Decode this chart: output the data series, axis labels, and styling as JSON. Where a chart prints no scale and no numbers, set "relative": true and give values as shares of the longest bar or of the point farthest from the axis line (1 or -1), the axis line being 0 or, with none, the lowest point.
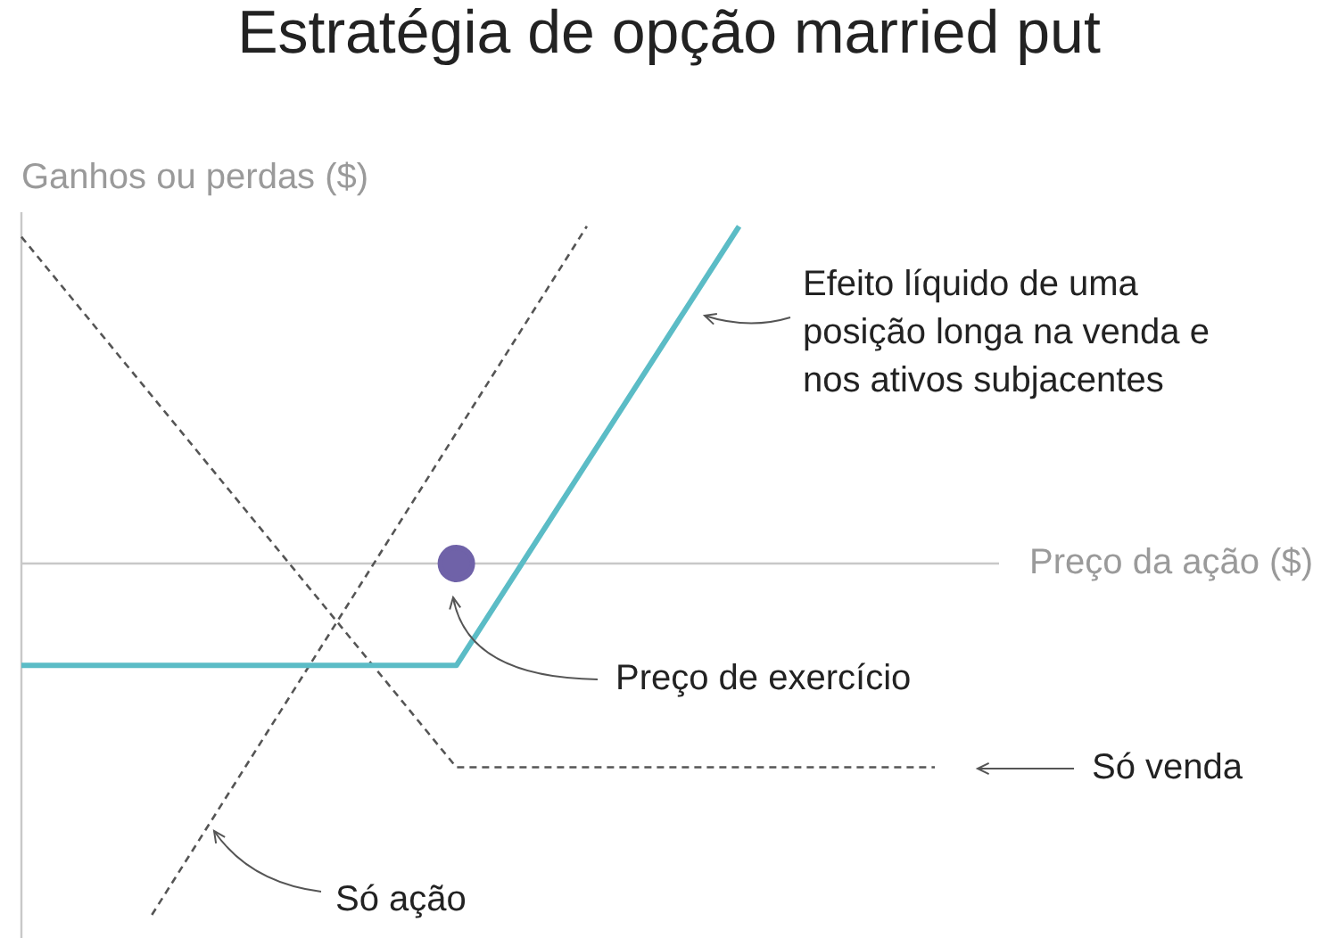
{
  "chart_data": {
    "type": "line",
    "title": "Estratégia de opção married put",
    "xlabel": "Preço da ação ($)",
    "ylabel": "Ganhos ou perdas ($)",
    "relative": true,
    "marker": "none",
    "categories": [
      null,
      null,
      null,
      null,
      null,
      null,
      null,
      null,
      null,
      null,
      null,
      null,
      null,
      null,
      null,
      null,
      null,
      null,
      null,
      null,
      null,
      null,
      null,
      null,
      null,
      null,
      null,
      null,
      null,
      null,
      null,
      null,
      null,
      null,
      null,
      null,
      null,
      null,
      null,
      null,
      null,
      null,
      null
    ],
    "series": [
      {
        "color": "#5bbcc6",
        "line_style": "solid",
        "values": [
          -0.29,
          null,
          null,
          null,
          null,
          null,
          null,
          null,
          null,
          null,
          null,
          null,
          null,
          null,
          null,
          null,
          null,
          null,
          null,
          null,
          -0.29,
          null,
          null,
          null,
          null,
          null,
          null,
          null,
          null,
          null,
          null,
          null,
          null,
          0.96,
          null,
          null,
          null,
          null,
          null,
          null,
          null,
          null,
          null
        ]
      },
      {
        "color": "#555555",
        "line_style": "dashed",
        "values": [
          0.93,
          null,
          null,
          null,
          null,
          null,
          null,
          null,
          null,
          null,
          null,
          null,
          null,
          null,
          null,
          null,
          null,
          null,
          null,
          null,
          -0.58,
          null,
          null,
          null,
          null,
          null,
          null,
          null,
          null,
          null,
          null,
          null,
          null,
          null,
          null,
          null,
          null,
          null,
          null,
          null,
          null,
          null,
          -0.58
        ]
      },
      {
        "color": "#555555",
        "line_style": "dashed",
        "values": [
          null,
          null,
          null,
          null,
          null,
          null,
          -1,
          null,
          null,
          null,
          null,
          null,
          null,
          null,
          null,
          null,
          null,
          null,
          null,
          null,
          null,
          null,
          null,
          null,
          null,
          null,
          0.96,
          null,
          null,
          null,
          null,
          null,
          null,
          null,
          null,
          null,
          null,
          null,
          null,
          null,
          null,
          null,
          null
        ]
      },
      {
        "marker": "circle",
        "color": "#6f62a8",
        "values": [
          null,
          null,
          null,
          null,
          null,
          null,
          null,
          null,
          null,
          null,
          null,
          null,
          null,
          null,
          null,
          null,
          null,
          null,
          null,
          null,
          0,
          null,
          null,
          null,
          null,
          null,
          null,
          null,
          null,
          null,
          null,
          null,
          null,
          null,
          null,
          null,
          null,
          null,
          null,
          null,
          null,
          null,
          null
        ]
      }
    ],
    "annotations": [
      "Efeito líquido de uma posição longa na venda e nos ativos subjacentes",
      "Só venda",
      "Só ação",
      "Preço de exercício"
    ]
  }
}
